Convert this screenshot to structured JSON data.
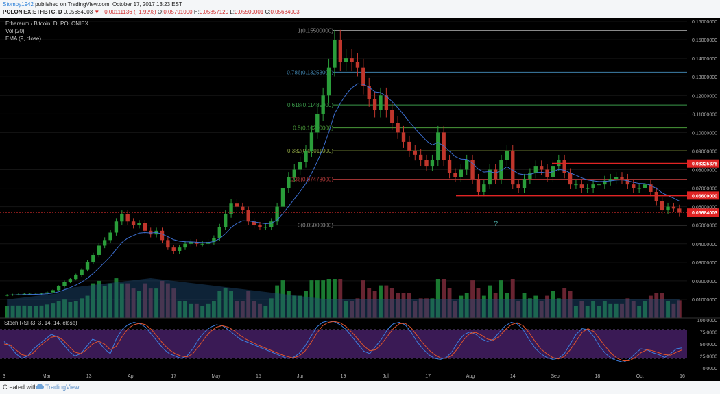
{
  "header": {
    "user": "Stompy1942",
    "published": " published on TradingView.com, October 17, 2017 13:23 EST",
    "symbol": "POLONIEX:ETHBTC, D",
    "last": "0.05684003",
    "arrow": "▼",
    "change": "−0.00111136 (−1.92%)",
    "o_label": "O:",
    "o": "0.05791000",
    "h_label": "H:",
    "h": "0.05857120",
    "l_label": "L:",
    "l": "0.05500001",
    "c_label": "C:",
    "c": "0.05684003"
  },
  "legend": {
    "title": "Ethereum / Bitcoin, D, POLONIEX",
    "vol": "Vol (20)",
    "ema": "EMA (9, close)"
  },
  "footer": {
    "created": "Created with",
    "brand": "TradingView"
  },
  "colors": {
    "up": "#2a9d3a",
    "down": "#c0362c",
    "ema": "#3c6fd0",
    "rsi_k": "#3c7fe0",
    "rsi_d": "#e0542c",
    "rsi_band": "#3a1a55"
  },
  "chart_data": [
    {
      "type": "candlestick",
      "title": "Ethereum / Bitcoin, D, POLONIEX",
      "y_ticks": [
        "0.16000000",
        "0.15000000",
        "0.14000000",
        "0.13000000",
        "0.12000000",
        "0.11000000",
        "0.10000000",
        "0.09000000",
        "0.08000000",
        "0.07000000",
        "0.06000000",
        "0.05000000",
        "0.04000000",
        "0.03000000",
        "0.02000000",
        "0.01000000"
      ],
      "ylim": [
        0,
        0.16
      ],
      "x_ticks": [
        "3",
        "Mar",
        "13",
        "Apr",
        "17",
        "May",
        "15",
        "Jun",
        "19",
        "Jul",
        "17",
        "Aug",
        "14",
        "Sep",
        "18",
        "Oct",
        "16"
      ],
      "close_series": [
        0.0124,
        0.0126,
        0.0128,
        0.013,
        0.013,
        0.013,
        0.0132,
        0.0138,
        0.015,
        0.017,
        0.0195,
        0.021,
        0.023,
        0.026,
        0.03,
        0.034,
        0.039,
        0.042,
        0.046,
        0.052,
        0.056,
        0.052,
        0.05,
        0.051,
        0.047,
        0.045,
        0.047,
        0.042,
        0.038,
        0.036,
        0.038,
        0.04,
        0.041,
        0.04,
        0.04,
        0.041,
        0.043,
        0.049,
        0.056,
        0.062,
        0.06,
        0.058,
        0.052,
        0.05,
        0.049,
        0.049,
        0.052,
        0.06,
        0.07,
        0.076,
        0.08,
        0.084,
        0.09,
        0.1,
        0.11,
        0.12,
        0.135,
        0.15,
        0.138,
        0.14,
        0.138,
        0.135,
        0.125,
        0.118,
        0.112,
        0.12,
        0.112,
        0.105,
        0.1,
        0.095,
        0.09,
        0.088,
        0.085,
        0.082,
        0.085,
        0.1,
        0.085,
        0.078,
        0.076,
        0.08,
        0.085,
        0.075,
        0.068,
        0.072,
        0.08,
        0.075,
        0.085,
        0.09,
        0.072,
        0.07,
        0.075,
        0.078,
        0.082,
        0.08,
        0.076,
        0.082,
        0.085,
        0.078,
        0.072,
        0.072,
        0.07,
        0.07,
        0.072,
        0.072,
        0.074,
        0.075,
        0.076,
        0.075,
        0.072,
        0.07,
        0.07,
        0.072,
        0.068,
        0.063,
        0.058,
        0.06,
        0.059,
        0.0568
      ],
      "fib_levels": [
        {
          "label": "1(0.15500000)",
          "value": 0.155,
          "color": "#8a8a8a"
        },
        {
          "label": "0.786(0.13253000)",
          "value": 0.13253,
          "color": "#3e7fa8"
        },
        {
          "label": "0.618(0.11489000)",
          "value": 0.11489,
          "color": "#3a9a4a"
        },
        {
          "label": "0.5(0.10250000)",
          "value": 0.1025,
          "color": "#4a9a3a"
        },
        {
          "label": "0.382(0.09011000)",
          "value": 0.09011,
          "color": "#8aa040"
        },
        {
          "label": "0.236(0.07478000)",
          "value": 0.07478,
          "color": "#b23a3a"
        },
        {
          "label": "0(0.05000000)",
          "value": 0.05,
          "color": "#8a8a8a"
        }
      ],
      "horizontal_levels": [
        {
          "label": "0.08325378",
          "value": 0.08325378
        },
        {
          "label": "0.06600000",
          "value": 0.066
        },
        {
          "label": "0.05684003",
          "value": 0.05684003
        }
      ],
      "annotation": "?"
    },
    {
      "type": "line",
      "title": "Stoch RSI (3, 3, 14, 14, close)",
      "y_ticks": [
        "100.0000",
        "75.0000",
        "50.0000",
        "25.0000",
        "0.0000"
      ],
      "ylim": [
        0,
        100
      ],
      "band": [
        20,
        80
      ],
      "series": [
        {
          "values": [
            55,
            45,
            30,
            20,
            25,
            40,
            50,
            60,
            70,
            65,
            50,
            35,
            25,
            30,
            45,
            60,
            55,
            40,
            30,
            60,
            80,
            90,
            95,
            92,
            85,
            70,
            55,
            40,
            30,
            25,
            20,
            25,
            40,
            60,
            75,
            85,
            90,
            88,
            80,
            70,
            60,
            55,
            50,
            45,
            40,
            35,
            30,
            25,
            20,
            22,
            30,
            45,
            65,
            85,
            95,
            98,
            96,
            90,
            80,
            65,
            50,
            35,
            30,
            45,
            60,
            80,
            92,
            95,
            90,
            75,
            55,
            40,
            28,
            20,
            18,
            22,
            35,
            55,
            70,
            75,
            70,
            60,
            55,
            60,
            75,
            88,
            95,
            92,
            80,
            60,
            42,
            30,
            22,
            18,
            20,
            30,
            50,
            70,
            82,
            80,
            65,
            45,
            30,
            20,
            15,
            12,
            18,
            30,
            40,
            38,
            32,
            28,
            22,
            30,
            40,
            42
          ]
        },
        {
          "values": [
            50,
            48,
            38,
            28,
            25,
            32,
            45,
            55,
            64,
            66,
            58,
            45,
            33,
            30,
            38,
            50,
            56,
            50,
            38,
            45,
            65,
            82,
            90,
            93,
            90,
            80,
            65,
            50,
            38,
            30,
            25,
            23,
            30,
            45,
            62,
            76,
            85,
            88,
            85,
            78,
            68,
            60,
            54,
            48,
            43,
            38,
            33,
            28,
            24,
            21,
            25,
            35,
            52,
            72,
            88,
            95,
            97,
            94,
            86,
            74,
            60,
            46,
            36,
            38,
            50,
            66,
            82,
            92,
            93,
            84,
            68,
            52,
            38,
            28,
            21,
            20,
            27,
            42,
            60,
            72,
            74,
            68,
            60,
            58,
            66,
            80,
            90,
            94,
            88,
            74,
            56,
            40,
            30,
            22,
            19,
            24,
            38,
            56,
            74,
            82,
            76,
            60,
            44,
            30,
            20,
            15,
            15,
            22,
            32,
            38,
            36,
            32,
            28,
            27,
            33,
            38
          ]
        }
      ]
    }
  ]
}
